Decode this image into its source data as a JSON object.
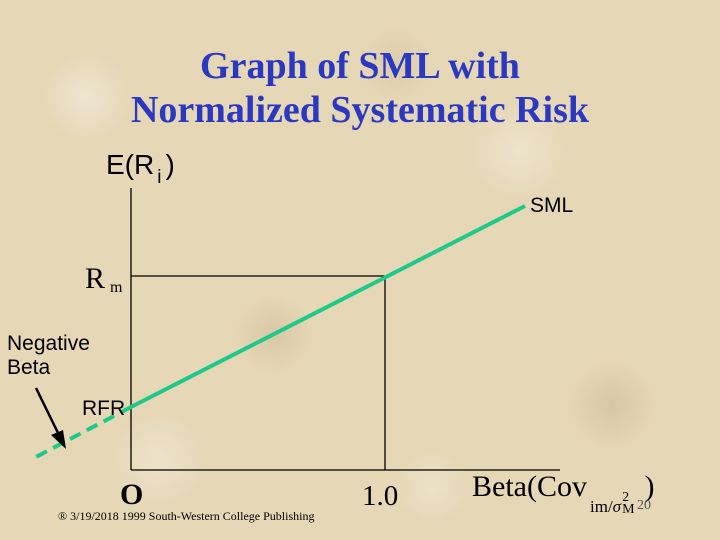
{
  "title": {
    "line1": "Graph of SML with",
    "line2": "Normalized Systematic Risk"
  },
  "axes": {
    "y_label_main": "E(R",
    "y_label_sub": "i",
    "y_label_close": ")",
    "x_label_main": "Beta(Cov",
    "x_label_sub": "im",
    "x_label_slash": "/",
    "x_label_sigma": "σ",
    "x_label_sup": "2",
    "x_label_sigma_sub": "M",
    "x_label_close": ")",
    "origin": "O",
    "x_tick": "1.0"
  },
  "labels": {
    "sml": "SML",
    "rm_main": "R",
    "rm_sub": "m",
    "rfr": "RFR",
    "negative_beta_line1": "Negative",
    "negative_beta_line2": "Beta"
  },
  "footer": {
    "copyright": "® 3/19/2018 1999 South-Western College Publishing",
    "slide_number": "20"
  },
  "colors": {
    "title": "#2b38c2",
    "sml_line": "#1fc98a",
    "axis": "#000000"
  }
}
